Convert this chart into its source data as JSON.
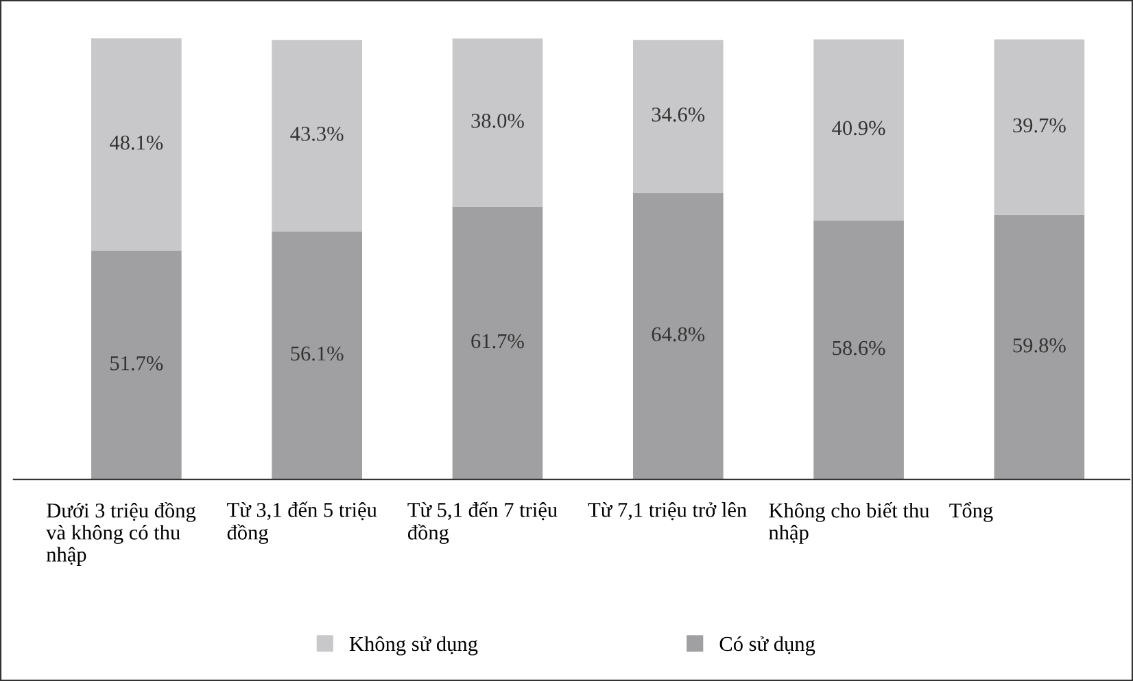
{
  "chart_data": {
    "type": "bar",
    "stacked": true,
    "categories": [
      "Dưới 3 triệu đồng\nvà không có thu\nnhập",
      "Từ 3,1 đến 5 triệu\nđồng",
      "Từ 5,1 đến 7 triệu\nđồng",
      "Từ 7,1 triệu trở lên",
      "Không cho biết thu\nnhập",
      "Tổng"
    ],
    "series": [
      {
        "name": "Có sử dụng",
        "color": "#a0a0a2",
        "values": [
          51.7,
          56.1,
          61.7,
          64.8,
          58.6,
          59.8
        ],
        "value_labels": [
          "51.7%",
          "56.1%",
          "61.7%",
          "64.8%",
          "58.6%",
          "59.8%"
        ]
      },
      {
        "name": "Không sử dụng",
        "color": "#c8c8ca",
        "values": [
          48.1,
          43.3,
          38.0,
          34.6,
          40.9,
          39.7
        ],
        "value_labels": [
          "48.1%",
          "43.3%",
          "38.0%",
          "34.6%",
          "40.9%",
          "39.7%"
        ]
      }
    ],
    "tick_labels": "x",
    "legend": "bottom"
  }
}
